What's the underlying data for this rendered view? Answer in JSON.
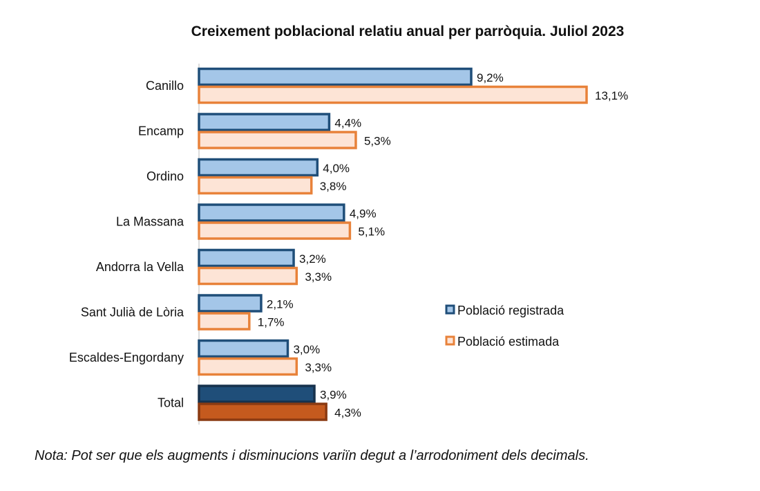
{
  "chart_data": {
    "type": "bar",
    "orientation": "horizontal",
    "title": "Creixement poblacional relatiu anual per parròquia. Juliol 2023",
    "categories": [
      "Canillo",
      "Encamp",
      "Ordino",
      "La Massana",
      "Andorra la Vella",
      "Sant Julià de Lòria",
      "Escaldes-Engordany",
      "Total"
    ],
    "series": [
      {
        "name": "Població registrada",
        "values": [
          9.2,
          4.4,
          4.0,
          4.9,
          3.2,
          2.1,
          3.0,
          3.9
        ],
        "labels": [
          "9,2%",
          "4,4%",
          "4,0%",
          "4,9%",
          "3,2%",
          "2,1%",
          "3,0%",
          "3,9%"
        ],
        "fill": "#a4c6e8",
        "stroke": "#1f4e79",
        "total_fill": "#1f4e79",
        "total_stroke": "#17324d"
      },
      {
        "name": "Població estimada",
        "values": [
          13.1,
          5.3,
          3.8,
          5.1,
          3.3,
          1.7,
          3.3,
          4.3
        ],
        "labels": [
          "13,1%",
          "5,3%",
          "3,8%",
          "5,1%",
          "3,3%",
          "1,7%",
          "3,3%",
          "4,3%"
        ],
        "fill": "#fde4d6",
        "stroke": "#e8823a",
        "total_fill": "#c55a1e",
        "total_stroke": "#8a3a12"
      }
    ],
    "xlim": [
      0,
      14
    ],
    "grid": false,
    "legend_position": "right"
  },
  "note": "Nota: Pot ser que els augments i disminucions variïn degut a l’arrodoniment dels decimals."
}
